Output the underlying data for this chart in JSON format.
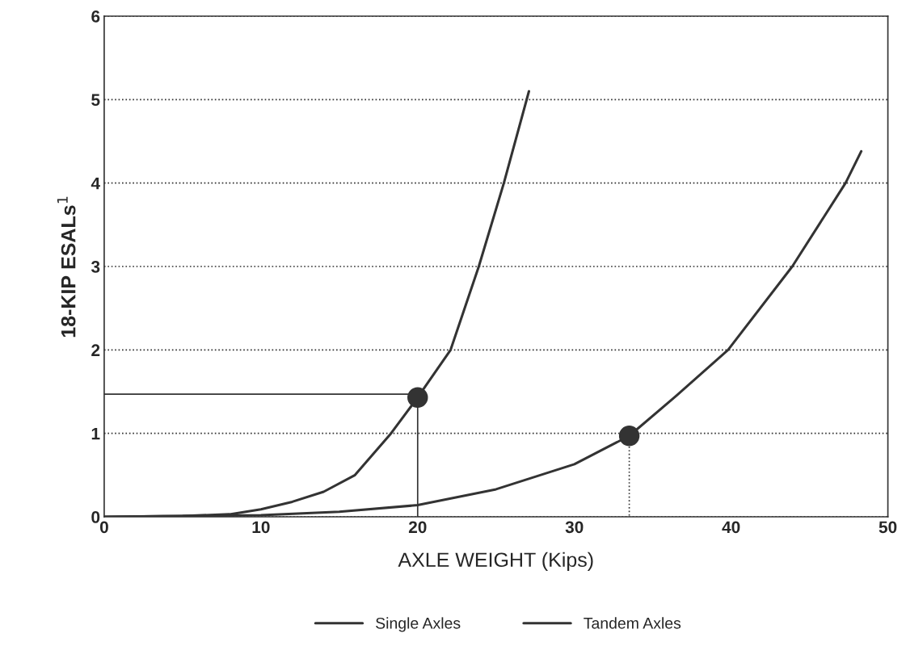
{
  "chart_data": {
    "type": "line",
    "xlabel": "AXLE WEIGHT (Kips)",
    "ylabel": "18-KIP ESALs$^{1}$",
    "xlim": [
      0,
      50
    ],
    "ylim": [
      0,
      6
    ],
    "xticks": [
      0,
      10,
      20,
      30,
      40,
      50
    ],
    "yticks": [
      0,
      1,
      2,
      3,
      4,
      5,
      6
    ],
    "grid": "y",
    "legend": "bottom",
    "line_style": "solid",
    "series": [
      {
        "name": "Single Axles",
        "color": "#333333",
        "x": [
          0,
          5,
          8,
          10,
          12,
          14,
          16,
          18.3,
          20,
          22.1,
          23.9,
          25.5,
          27.1
        ],
        "values": [
          0,
          0.01,
          0.03,
          0.09,
          0.18,
          0.3,
          0.5,
          1.0,
          1.43,
          2.0,
          3.0,
          4.0,
          5.1
        ]
      },
      {
        "name": "Tandem Axles",
        "color": "#333333",
        "x": [
          0,
          10,
          15,
          20,
          25,
          30,
          33.5,
          36.5,
          39.8,
          43.9,
          47.3,
          48.3
        ],
        "values": [
          0,
          0.02,
          0.06,
          0.14,
          0.33,
          0.63,
          0.97,
          1.45,
          2.0,
          3.0,
          4.0,
          4.38
        ]
      },
      {
        "type": "line",
        "color": "#333333",
        "line_style": "solid",
        "x": [
          0,
          20,
          20
        ],
        "values": [
          1.47,
          1.47,
          0
        ]
      },
      {
        "type": "line",
        "color": "#333333",
        "line_style": "dotted",
        "x": [
          33.5,
          33.5
        ],
        "values": [
          0.97,
          0
        ]
      },
      {
        "type": "scatter",
        "color": "#333333",
        "marker": "circle",
        "x": [
          20,
          33.5
        ],
        "values": [
          1.43,
          0.97
        ]
      }
    ]
  }
}
